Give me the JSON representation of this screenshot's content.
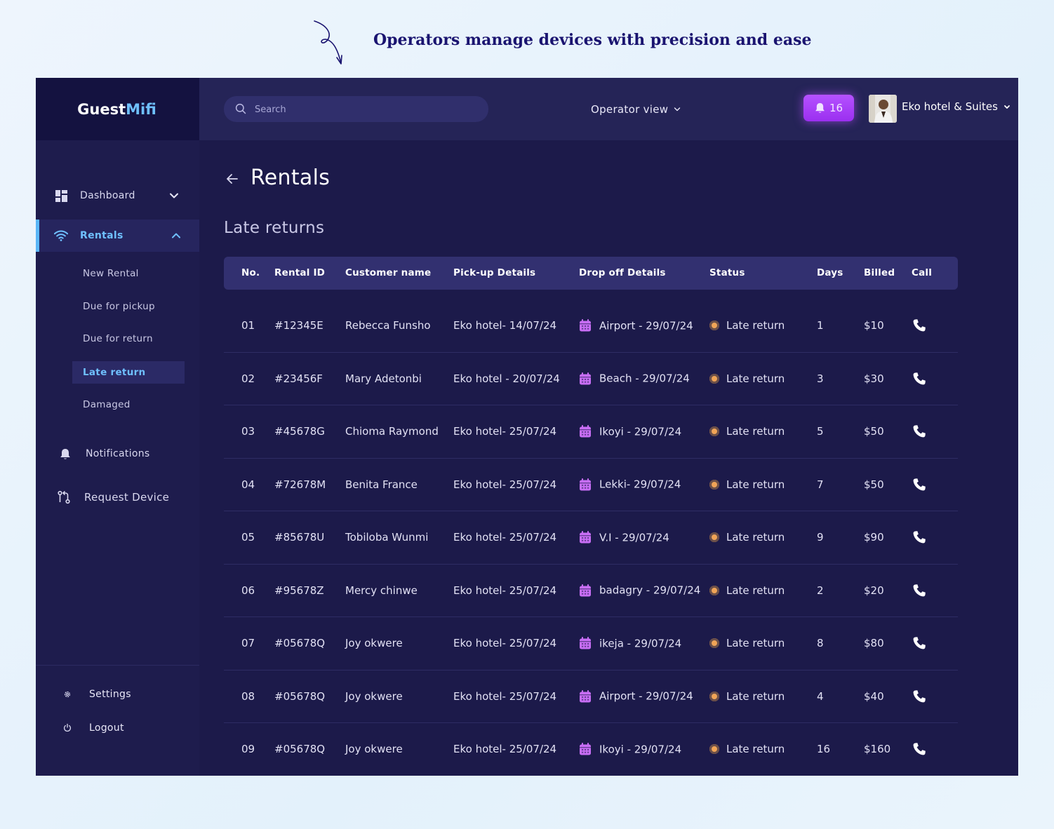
{
  "caption": "Operators manage devices with precision and ease",
  "brand": {
    "part1": "Guest",
    "part2": "Mifi"
  },
  "sidebar": {
    "items": [
      {
        "label": "Dashboard",
        "icon": "dashboard-icon"
      },
      {
        "label": "Rentals",
        "icon": "wifi-icon"
      }
    ],
    "rentals_sub": [
      "New Rental",
      "Due for pickup",
      "Due for return",
      "Late return",
      "Damaged"
    ],
    "active_sub": "Late return",
    "notifications": "Notifications",
    "request_device": "Request Device",
    "settings": "Settings",
    "logout": "Logout"
  },
  "header": {
    "search_placeholder": "Search",
    "view_selector": "Operator view",
    "notification_count": "16",
    "account_name": "Eko hotel & Suites"
  },
  "page": {
    "title": "Rentals",
    "section": "Late returns"
  },
  "table": {
    "columns": [
      "No.",
      "Rental ID",
      "Customer name",
      "Pick-up Details",
      "Drop off Details",
      "Status",
      "Days",
      "Billed",
      "Call"
    ],
    "rows": [
      {
        "no": "01",
        "id": "#12345E",
        "customer": "Rebecca Funsho",
        "pickup": "Eko hotel- 14/07/24",
        "dropoff": "Airport - 29/07/24",
        "status": "Late return",
        "days": "1",
        "billed": "$10"
      },
      {
        "no": "02",
        "id": "#23456F",
        "customer": "Mary Adetonbi",
        "pickup": "Eko hotel - 20/07/24",
        "dropoff": "Beach - 29/07/24",
        "status": "Late return",
        "days": "3",
        "billed": "$30"
      },
      {
        "no": "03",
        "id": "#45678G",
        "customer": "Chioma Raymond",
        "pickup": "Eko hotel- 25/07/24",
        "dropoff": "Ikoyi - 29/07/24",
        "status": "Late return",
        "days": "5",
        "billed": "$50"
      },
      {
        "no": "04",
        "id": "#72678M",
        "customer": "Benita France",
        "pickup": "Eko hotel- 25/07/24",
        "dropoff": "Lekki- 29/07/24",
        "status": "Late return",
        "days": "7",
        "billed": "$50"
      },
      {
        "no": "05",
        "id": "#85678U",
        "customer": "Tobiloba Wunmi",
        "pickup": "Eko hotel- 25/07/24",
        "dropoff": "V.I - 29/07/24",
        "status": "Late return",
        "days": "9",
        "billed": "$90"
      },
      {
        "no": "06",
        "id": "#95678Z",
        "customer": "Mercy chinwe",
        "pickup": "Eko hotel- 25/07/24",
        "dropoff": "badagry - 29/07/24",
        "status": "Late return",
        "days": "2",
        "billed": "$20"
      },
      {
        "no": "07",
        "id": "#05678Q",
        "customer": "Joy okwere",
        "pickup": "Eko hotel- 25/07/24",
        "dropoff": "ikeja - 29/07/24",
        "status": "Late return",
        "days": "8",
        "billed": "$80"
      },
      {
        "no": "08",
        "id": "#05678Q",
        "customer": "Joy okwere",
        "pickup": "Eko hotel- 25/07/24",
        "dropoff": "Airport - 29/07/24",
        "status": "Late return",
        "days": "4",
        "billed": "$40"
      },
      {
        "no": "09",
        "id": "#05678Q",
        "customer": "Joy okwere",
        "pickup": "Eko hotel- 25/07/24",
        "dropoff": "Ikoyi - 29/07/24",
        "status": "Late return",
        "days": "16",
        "billed": "$160"
      }
    ]
  },
  "colors": {
    "app_bg": "#1c1a4a",
    "sidebar_bg": "#1e1c4d",
    "accent_blue": "#6fc0ff",
    "notif_purple": "#a83ef8",
    "status_dot": "#f0a457",
    "calendar_icon": "#c86ef5"
  }
}
